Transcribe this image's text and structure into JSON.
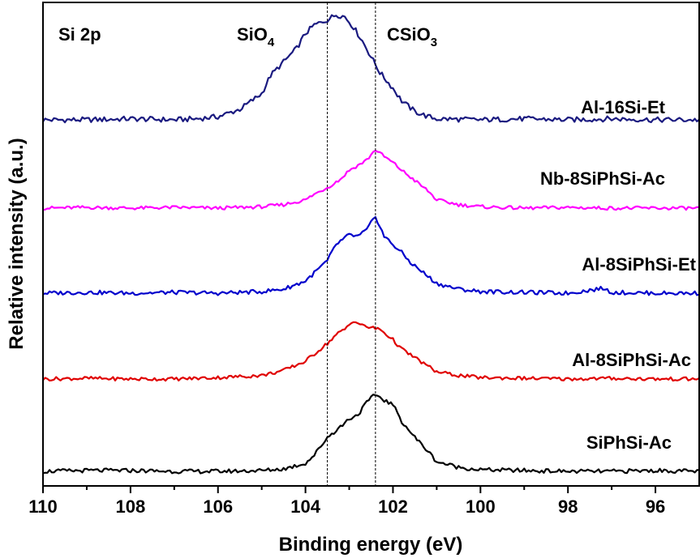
{
  "chart_data": {
    "type": "line",
    "xlabel": "Binding energy (eV)",
    "ylabel": "Relative intensity (a.u.)",
    "xlim": [
      110,
      95
    ],
    "x_reversed": true,
    "xticks": [
      110,
      108,
      106,
      104,
      102,
      100,
      98,
      96
    ],
    "y_ticks_shown": false,
    "grid": false,
    "legend": "none (series labelled inline at right of each trace)",
    "annotations": {
      "region": "Si 2p",
      "peak1_base": "SiO",
      "peak1_sub": "4",
      "peak2_base": "CSiO",
      "peak2_sub": "3"
    },
    "reference_lines": [
      {
        "x": 103.5,
        "style": "dashed"
      },
      {
        "x": 102.4,
        "style": "dashed"
      }
    ],
    "series": [
      {
        "name": "Al-16Si-Et",
        "color": "#1a1a80",
        "x": [
          110,
          109,
          108,
          107,
          106.5,
          106,
          105.5,
          105,
          104.8,
          104.5,
          104.2,
          104.0,
          103.8,
          103.5,
          103.3,
          103.1,
          102.9,
          102.7,
          102.5,
          102.3,
          102.0,
          101.8,
          101.5,
          101.2,
          101,
          100,
          99,
          98,
          97,
          96,
          95
        ],
        "y": [
          0.0,
          0.0,
          0.01,
          0.0,
          0.01,
          0.03,
          0.1,
          0.25,
          0.42,
          0.55,
          0.68,
          0.82,
          0.9,
          0.95,
          1.0,
          0.98,
          0.88,
          0.75,
          0.6,
          0.45,
          0.3,
          0.18,
          0.08,
          0.03,
          0.01,
          0.0,
          0.01,
          0.0,
          0.01,
          0.0,
          0.0
        ]
      },
      {
        "name": "Nb-8SiPhSi-Ac",
        "color": "#ff00ff",
        "x": [
          110,
          109,
          108,
          107,
          106,
          105,
          104.5,
          104,
          103.8,
          103.5,
          103.2,
          103.0,
          102.8,
          102.6,
          102.4,
          102.2,
          102.0,
          101.8,
          101.5,
          101.2,
          101,
          100.5,
          100,
          99,
          98,
          97,
          96,
          95
        ],
        "y": [
          0.0,
          0.01,
          0.0,
          0.01,
          0.0,
          0.02,
          0.05,
          0.12,
          0.2,
          0.3,
          0.42,
          0.55,
          0.62,
          0.7,
          0.85,
          0.75,
          0.66,
          0.55,
          0.4,
          0.25,
          0.12,
          0.05,
          0.02,
          0.0,
          0.01,
          0.0,
          0.0,
          0.0
        ]
      },
      {
        "name": "Al-8SiPhSi-Et",
        "color": "#0000cc",
        "x": [
          110,
          109,
          108,
          107,
          106,
          105,
          104.5,
          104,
          103.8,
          103.5,
          103.3,
          103.0,
          102.8,
          102.6,
          102.4,
          102.2,
          102.0,
          101.8,
          101.6,
          101.3,
          101.0,
          100.5,
          100,
          99,
          98,
          97.2,
          97,
          96,
          95
        ],
        "y": [
          0.0,
          0.01,
          0.0,
          0.01,
          0.0,
          0.02,
          0.05,
          0.15,
          0.25,
          0.4,
          0.6,
          0.72,
          0.7,
          0.78,
          0.95,
          0.7,
          0.6,
          0.5,
          0.38,
          0.25,
          0.12,
          0.05,
          0.02,
          0.01,
          0.0,
          0.06,
          0.01,
          0.0,
          0.0
        ]
      },
      {
        "name": "Al-8SiPhSi-Ac",
        "color": "#e00000",
        "x": [
          110,
          109,
          108,
          107,
          106,
          105,
          104.5,
          104,
          103.8,
          103.5,
          103.3,
          103.1,
          102.9,
          102.7,
          102.5,
          102.3,
          102.0,
          101.8,
          101.5,
          101.2,
          101.0,
          100.5,
          100,
          99,
          98,
          97,
          96,
          95
        ],
        "y": [
          0.0,
          0.01,
          0.0,
          0.0,
          0.02,
          0.05,
          0.12,
          0.25,
          0.35,
          0.5,
          0.62,
          0.7,
          0.82,
          0.75,
          0.72,
          0.7,
          0.55,
          0.42,
          0.3,
          0.18,
          0.1,
          0.05,
          0.02,
          0.01,
          0.0,
          0.01,
          0.0,
          0.0
        ]
      },
      {
        "name": "SiPhSi-Ac",
        "color": "#000000",
        "x": [
          110,
          109,
          108,
          107,
          106,
          105,
          104.5,
          104,
          103.8,
          103.5,
          103.2,
          103.0,
          102.8,
          102.6,
          102.4,
          102.2,
          102.0,
          101.8,
          101.5,
          101.2,
          101.0,
          100.5,
          100,
          99,
          98,
          97,
          96,
          95
        ],
        "y": [
          0.0,
          0.01,
          0.01,
          0.0,
          0.0,
          0.01,
          0.03,
          0.1,
          0.2,
          0.42,
          0.55,
          0.65,
          0.7,
          0.85,
          0.95,
          0.88,
          0.82,
          0.62,
          0.42,
          0.25,
          0.12,
          0.05,
          0.02,
          0.01,
          0.0,
          0.0,
          0.01,
          0.0
        ]
      }
    ]
  }
}
